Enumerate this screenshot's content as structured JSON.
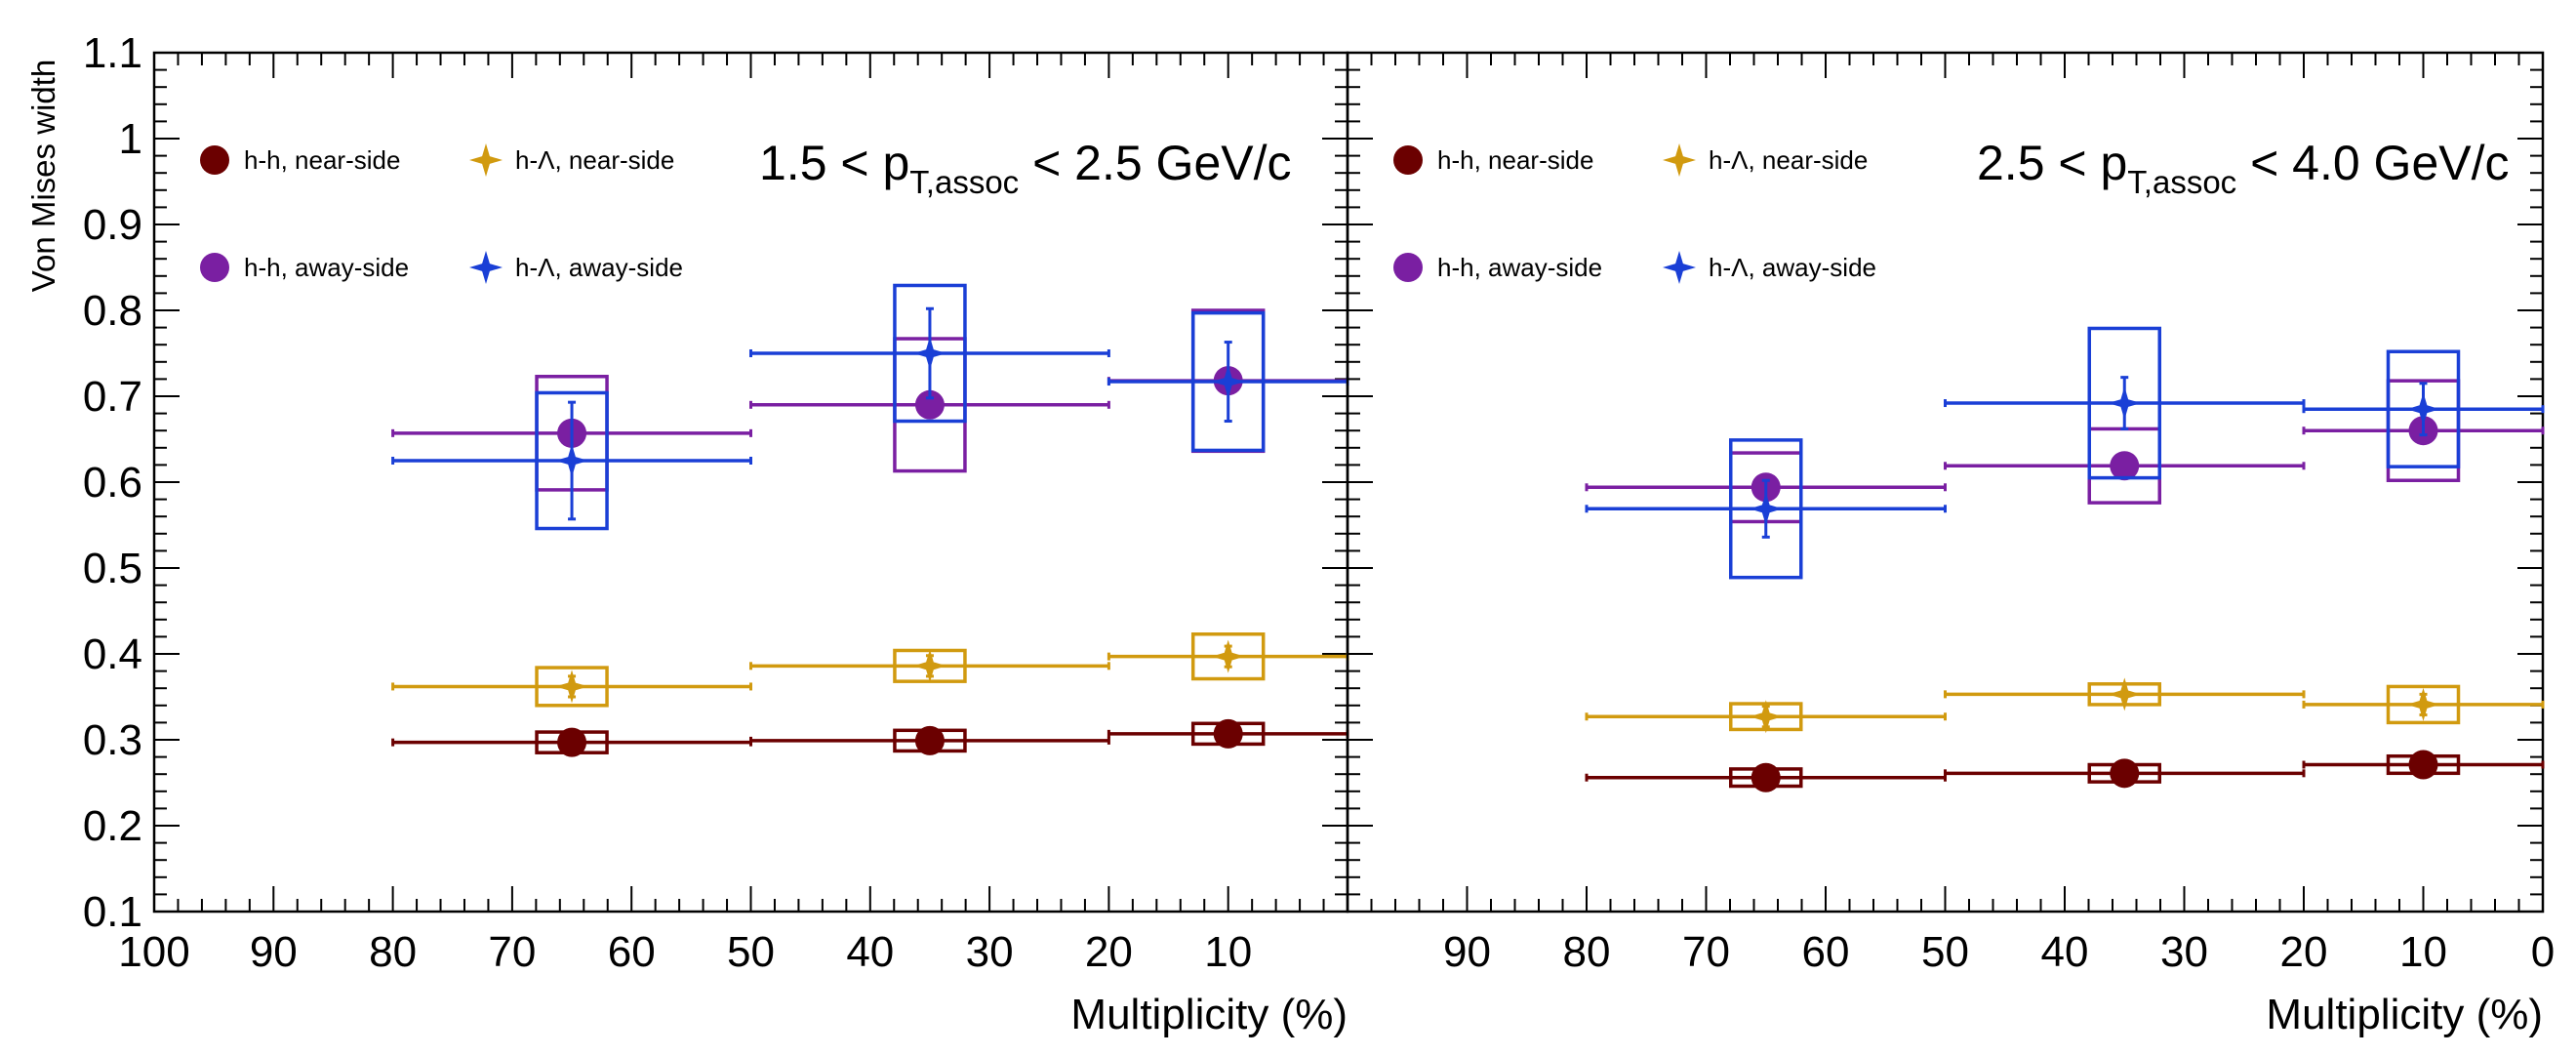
{
  "figure": {
    "ylabel": "Von Mises width",
    "xlabel": "Multiplicity (%)"
  },
  "chart_data": [
    {
      "type": "scatter",
      "panel": "left",
      "annotation": {
        "pre": "1.5 < p",
        "sub": "T,assoc",
        "post": " < 2.5 GeV/c"
      },
      "xlabel": "Multiplicity (%)",
      "ylabel": "Von Mises width",
      "xlim": [
        100,
        0
      ],
      "x_reversed": true,
      "ylim": [
        0.1,
        1.1
      ],
      "x_tick_labels": [
        "100",
        "90",
        "80",
        "70",
        "60",
        "50",
        "40",
        "30",
        "20",
        "10"
      ],
      "y_tick_labels": [
        "0.1",
        "0.2",
        "0.3",
        "0.4",
        "0.5",
        "0.6",
        "0.7",
        "0.8",
        "0.9",
        "1",
        "1.1"
      ],
      "grid": false,
      "legend_position": "top-left",
      "series": [
        {
          "name": "h-h, near-side",
          "marker": "circle",
          "color": "#6b0000",
          "points": [
            {
              "x": 65,
              "xlo": 80,
              "xhi": 50,
              "y": 0.297,
              "stat": 0.003,
              "sys": 0.012
            },
            {
              "x": 35,
              "xlo": 50,
              "xhi": 20,
              "y": 0.299,
              "stat": 0.003,
              "sys": 0.012
            },
            {
              "x": 10,
              "xlo": 20,
              "xhi": 0,
              "y": 0.307,
              "stat": 0.003,
              "sys": 0.012
            }
          ]
        },
        {
          "name": "h-Λ, near-side",
          "marker": "star",
          "color": "#d19a0f",
          "points": [
            {
              "x": 65,
              "xlo": 80,
              "xhi": 50,
              "y": 0.362,
              "stat": 0.012,
              "sys": 0.022
            },
            {
              "x": 35,
              "xlo": 50,
              "xhi": 20,
              "y": 0.386,
              "stat": 0.012,
              "sys": 0.018
            },
            {
              "x": 10,
              "xlo": 20,
              "xhi": 0,
              "y": 0.397,
              "stat": 0.012,
              "sys": 0.026
            }
          ]
        },
        {
          "name": "h-h, away-side",
          "marker": "circle",
          "color": "#7a1fa2",
          "points": [
            {
              "x": 65,
              "xlo": 80,
              "xhi": 50,
              "y": 0.657,
              "stat": 0.005,
              "sys": 0.066
            },
            {
              "x": 35,
              "xlo": 50,
              "xhi": 20,
              "y": 0.69,
              "stat": 0.005,
              "sys": 0.077
            },
            {
              "x": 10,
              "xlo": 20,
              "xhi": 0,
              "y": 0.718,
              "stat": 0.005,
              "sys": 0.082
            }
          ]
        },
        {
          "name": "h-Λ, away-side",
          "marker": "star",
          "color": "#1a3fd6",
          "points": [
            {
              "x": 65,
              "xlo": 80,
              "xhi": 50,
              "y": 0.625,
              "stat": 0.068,
              "sys": 0.079
            },
            {
              "x": 35,
              "xlo": 50,
              "xhi": 20,
              "y": 0.75,
              "stat": 0.052,
              "sys": 0.079
            },
            {
              "x": 10,
              "xlo": 20,
              "xhi": 0,
              "y": 0.717,
              "stat": 0.046,
              "sys": 0.08
            }
          ]
        }
      ]
    },
    {
      "type": "scatter",
      "panel": "right",
      "annotation": {
        "pre": "2.5 < p",
        "sub": "T,assoc",
        "post": " < 4.0 GeV/c"
      },
      "xlabel": "Multiplicity (%)",
      "xlim": [
        100,
        0
      ],
      "x_reversed": true,
      "ylim": [
        0.1,
        1.1
      ],
      "x_tick_labels": [
        "90",
        "80",
        "70",
        "60",
        "50",
        "40",
        "30",
        "20",
        "10",
        "0"
      ],
      "grid": false,
      "legend_position": "top-left",
      "series": [
        {
          "name": "h-h, near-side",
          "marker": "circle",
          "color": "#6b0000",
          "points": [
            {
              "x": 65,
              "xlo": 80,
              "xhi": 50,
              "y": 0.256,
              "stat": 0.003,
              "sys": 0.01
            },
            {
              "x": 35,
              "xlo": 50,
              "xhi": 20,
              "y": 0.261,
              "stat": 0.003,
              "sys": 0.01
            },
            {
              "x": 10,
              "xlo": 20,
              "xhi": 0,
              "y": 0.271,
              "stat": 0.003,
              "sys": 0.01
            }
          ]
        },
        {
          "name": "h-Λ, near-side",
          "marker": "star",
          "color": "#d19a0f",
          "points": [
            {
              "x": 65,
              "xlo": 80,
              "xhi": 50,
              "y": 0.327,
              "stat": 0.012,
              "sys": 0.015
            },
            {
              "x": 35,
              "xlo": 50,
              "xhi": 20,
              "y": 0.353,
              "stat": 0.012,
              "sys": 0.012
            },
            {
              "x": 10,
              "xlo": 20,
              "xhi": 0,
              "y": 0.341,
              "stat": 0.012,
              "sys": 0.021
            }
          ]
        },
        {
          "name": "h-h, away-side",
          "marker": "circle",
          "color": "#7a1fa2",
          "points": [
            {
              "x": 65,
              "xlo": 80,
              "xhi": 50,
              "y": 0.594,
              "stat": 0.005,
              "sys": 0.04
            },
            {
              "x": 35,
              "xlo": 50,
              "xhi": 20,
              "y": 0.619,
              "stat": 0.005,
              "sys": 0.043
            },
            {
              "x": 10,
              "xlo": 20,
              "xhi": 0,
              "y": 0.66,
              "stat": 0.005,
              "sys": 0.058
            }
          ]
        },
        {
          "name": "h-Λ, away-side",
          "marker": "star",
          "color": "#1a3fd6",
          "points": [
            {
              "x": 65,
              "xlo": 80,
              "xhi": 50,
              "y": 0.569,
              "stat": 0.033,
              "sys": 0.08
            },
            {
              "x": 35,
              "xlo": 50,
              "xhi": 20,
              "y": 0.692,
              "stat": 0.03,
              "sys": 0.087
            },
            {
              "x": 10,
              "xlo": 20,
              "xhi": 0,
              "y": 0.685,
              "stat": 0.03,
              "sys": 0.067
            }
          ]
        }
      ]
    }
  ]
}
